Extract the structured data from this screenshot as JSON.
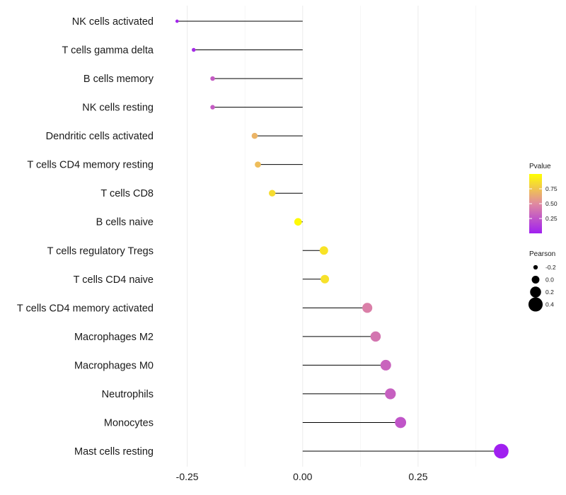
{
  "chart_data": {
    "type": "lollipop",
    "title": "",
    "xlabel": "",
    "ylabel": "",
    "xlim": [
      -0.3,
      0.46
    ],
    "x_ticks": [
      -0.25,
      0,
      0.25
    ],
    "x_tick_labels": [
      "-0.25",
      "0.00",
      "0.25"
    ],
    "categories": [
      "NK cells activated",
      "T cells gamma delta",
      "B cells memory",
      "NK cells resting",
      "Dendritic cells activated",
      "T cells CD4 memory resting",
      "T cells CD8",
      "B cells naive",
      "T cells regulatory  Tregs ",
      "T cells CD4 naive",
      "T cells CD4 memory activated",
      "Macrophages M2",
      "Macrophages M0",
      "Neutrophils",
      "Monocytes",
      "Mast cells resting"
    ],
    "values": [
      -0.272,
      -0.236,
      -0.195,
      -0.195,
      -0.104,
      -0.097,
      -0.066,
      -0.01,
      0.046,
      0.048,
      0.14,
      0.158,
      0.18,
      0.19,
      0.212,
      0.43
    ],
    "pvalues": [
      0.02,
      0.05,
      0.28,
      0.28,
      0.68,
      0.72,
      0.85,
      0.98,
      0.88,
      0.87,
      0.45,
      0.4,
      0.32,
      0.3,
      0.25,
      0.001
    ],
    "legend_color": {
      "title": "Pvalue",
      "ticks": [
        0.25,
        0.5,
        0.75
      ],
      "tick_labels": [
        "0.25",
        "0.50",
        "0.75"
      ],
      "range": [
        0,
        1
      ],
      "low_color": "#a020f0",
      "mid_color": "#e08aa0",
      "high_color": "#ffff00"
    },
    "legend_size": {
      "title": "Pearson",
      "values": [
        -0.2,
        0.0,
        0.2,
        0.4
      ],
      "labels": [
        "-0.2",
        "0.0",
        "0.2",
        "0.4"
      ]
    }
  }
}
